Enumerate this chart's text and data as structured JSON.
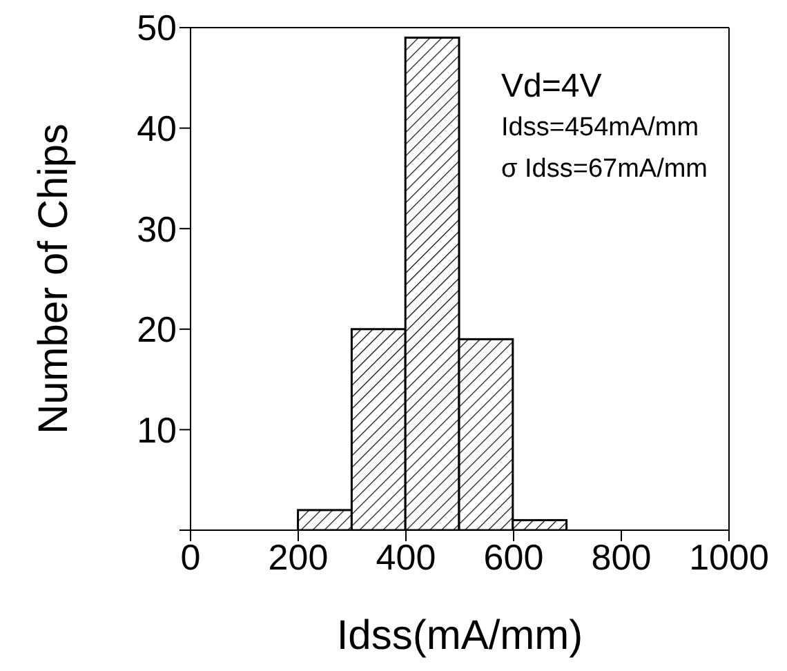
{
  "chart_data": {
    "type": "histogram",
    "xlabel": "Idss(mA/mm)",
    "ylabel": "Number of Chips",
    "bins": [
      0,
      100,
      200,
      300,
      400,
      500,
      600,
      700,
      800,
      900,
      1000
    ],
    "values": [
      0,
      0,
      2,
      20,
      49,
      19,
      1,
      0,
      0,
      0
    ],
    "color": "#000000",
    "xlim": [
      0,
      1000
    ],
    "xticks": [
      0,
      200,
      400,
      600,
      800,
      1000
    ],
    "ylim": [
      0,
      50
    ],
    "yticks": [
      {
        "value": 0,
        "label": null
      },
      10,
      20,
      30,
      40,
      50
    ],
    "annotations": [
      "Vd=4V",
      "Idss=454mA/mm",
      "σ Idss=67mA/mm"
    ],
    "grid": false,
    "legend": false
  }
}
